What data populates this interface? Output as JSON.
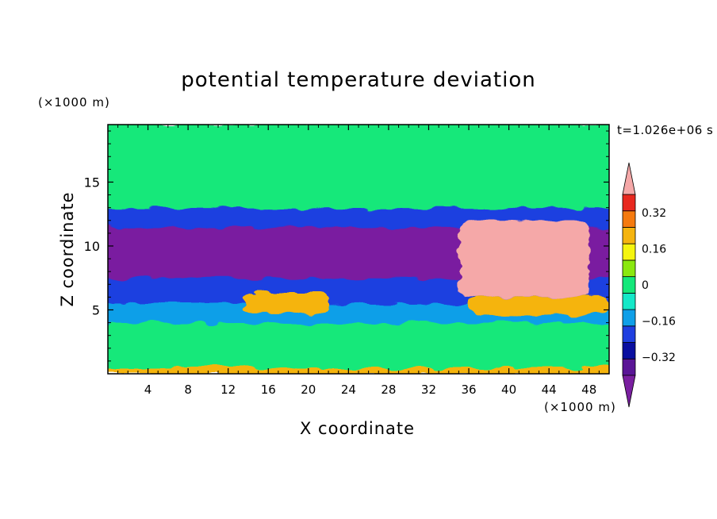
{
  "chart_data": {
    "type": "heatmap",
    "title": "potential temperature deviation",
    "xlabel": "X coordinate",
    "ylabel": "Z coordinate",
    "x_unit": "(×1000 m)",
    "y_unit": "(×1000 m)",
    "time_label": "t=1.026e+06 s",
    "xlim": [
      0,
      50
    ],
    "ylim": [
      0,
      19.5
    ],
    "x_ticks": [
      4,
      8,
      12,
      16,
      20,
      24,
      28,
      32,
      36,
      40,
      44,
      48
    ],
    "y_ticks": [
      5,
      10,
      15
    ],
    "colorbar": {
      "levels": [
        -0.48,
        -0.4,
        -0.32,
        -0.24,
        -0.16,
        -0.08,
        0,
        0.08,
        0.16,
        0.24,
        0.32,
        0.4,
        0.48
      ],
      "tick_labels": [
        "0.32",
        "0.16",
        "0",
        "−0.16",
        "−0.32"
      ],
      "tick_values": [
        0.32,
        0.16,
        0,
        -0.16,
        -0.32
      ],
      "colors": [
        "#7a1fa0",
        "#5a1596",
        "#0a0fa0",
        "#1f3fe0",
        "#0f9fe8",
        "#14e8c8",
        "#14e87a",
        "#8ae80f",
        "#f5f50f",
        "#f5b40f",
        "#f57a0f",
        "#e8281f",
        "#f5a8a8"
      ],
      "extend": "both"
    },
    "layers": [
      {
        "z": [
          0,
          0.5
        ],
        "value": 0.3
      },
      {
        "z": [
          0.5,
          4.0
        ],
        "value": 0.04
      },
      {
        "z": [
          4.0,
          5.5
        ],
        "value": -0.1
      },
      {
        "z": [
          5.5,
          7.5
        ],
        "value": -0.24
      },
      {
        "z": [
          7.5,
          11.5
        ],
        "value": -0.42
      },
      {
        "z": [
          11.5,
          13.0
        ],
        "value": -0.2
      },
      {
        "z": [
          13.0,
          19.5
        ],
        "value": 0.02
      }
    ],
    "features": [
      {
        "x": [
          13.5,
          22
        ],
        "z": [
          4.6,
          6.4
        ],
        "value": 0.3
      },
      {
        "x": [
          36,
          50
        ],
        "z": [
          4.6,
          6.0
        ],
        "value": 0.3
      },
      {
        "x": [
          35,
          48
        ],
        "z": [
          6.0,
          12.0
        ],
        "value": 0.5
      }
    ]
  }
}
